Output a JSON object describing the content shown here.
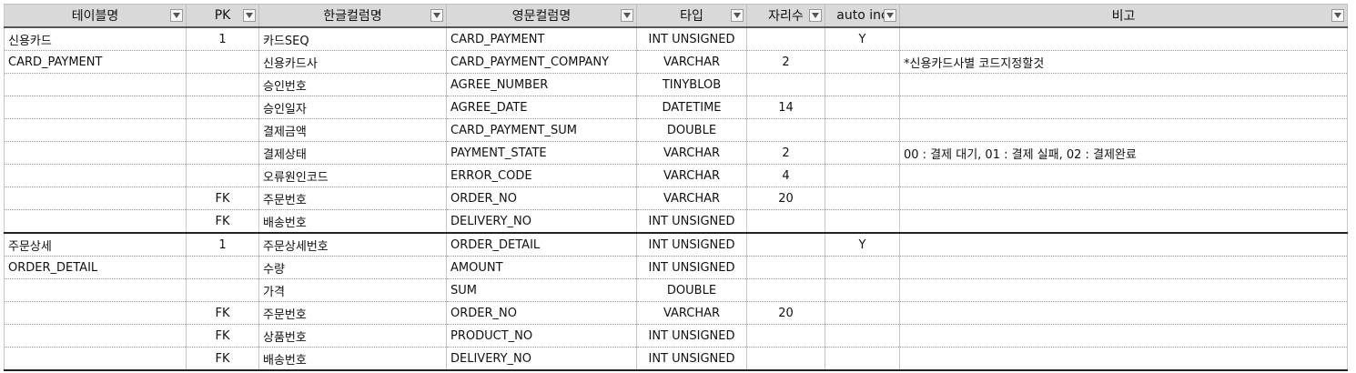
{
  "headers": [
    {
      "label": "테이블명",
      "name": "header-table-name"
    },
    {
      "label": "PK",
      "name": "header-pk"
    },
    {
      "label": "한글컬럼명",
      "name": "header-korean-column"
    },
    {
      "label": "영문컬럼명",
      "name": "header-english-column"
    },
    {
      "label": "타입",
      "name": "header-type"
    },
    {
      "label": "자리수",
      "name": "header-length"
    },
    {
      "label": "auto inc",
      "name": "header-auto-inc"
    },
    {
      "label": "비고",
      "name": "header-remarks"
    }
  ],
  "rows": [
    [
      "신용카드",
      "1",
      "카드SEQ",
      "CARD_PAYMENT",
      "INT UNSIGNED",
      "",
      "Y",
      ""
    ],
    [
      "CARD_PAYMENT",
      "",
      "신용카드사",
      "CARD_PAYMENT_COMPANY",
      "VARCHAR",
      "2",
      "",
      "*신용카드사별 코드지정할것"
    ],
    [
      "",
      "",
      "승인번호",
      "AGREE_NUMBER",
      "TINYBLOB",
      "",
      "",
      ""
    ],
    [
      "",
      "",
      "승인일자",
      "AGREE_DATE",
      "DATETIME",
      "14",
      "",
      ""
    ],
    [
      "",
      "",
      "결제금액",
      "CARD_PAYMENT_SUM",
      "DOUBLE",
      "",
      "",
      ""
    ],
    [
      "",
      "",
      "결제상태",
      "PAYMENT_STATE",
      "VARCHAR",
      "2",
      "",
      "00 : 결제 대기, 01 : 결제 실패, 02 : 결제완료"
    ],
    [
      "",
      "",
      "오류원인코드",
      "ERROR_CODE",
      "VARCHAR",
      "4",
      "",
      ""
    ],
    [
      "",
      "FK",
      "주문번호",
      "ORDER_NO",
      "VARCHAR",
      "20",
      "",
      ""
    ],
    [
      "",
      "FK",
      "배송번호",
      "DELIVERY_NO",
      "INT UNSIGNED",
      "",
      "",
      ""
    ],
    [
      "주문상세",
      "1",
      "주문상세번호",
      "ORDER_DETAIL",
      "INT UNSIGNED",
      "",
      "Y",
      ""
    ],
    [
      "ORDER_DETAIL",
      "",
      "수량",
      "AMOUNT",
      "INT UNSIGNED",
      "",
      "",
      ""
    ],
    [
      "",
      "",
      "가격",
      "SUM",
      "DOUBLE",
      "",
      "",
      ""
    ],
    [
      "",
      "FK",
      "주문번호",
      "ORDER_NO",
      "VARCHAR",
      "20",
      "",
      ""
    ],
    [
      "",
      "FK",
      "상품번호",
      "PRODUCT_NO",
      "INT UNSIGNED",
      "",
      "",
      ""
    ],
    [
      "",
      "FK",
      "배송번호",
      "DELIVERY_NO",
      "INT UNSIGNED",
      "",
      "",
      ""
    ]
  ],
  "group_end_rows": [
    8,
    14
  ],
  "filter_icon": "filter-dropdown-icon"
}
